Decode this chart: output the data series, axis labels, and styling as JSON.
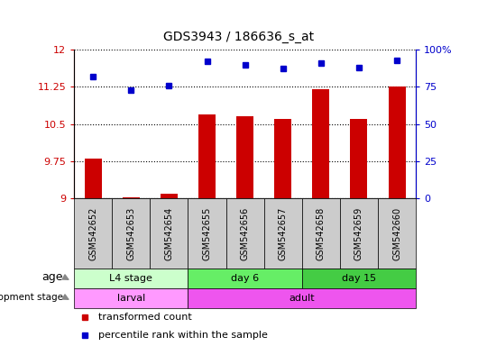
{
  "title": "GDS3943 / 186636_s_at",
  "samples": [
    "GSM542652",
    "GSM542653",
    "GSM542654",
    "GSM542655",
    "GSM542656",
    "GSM542657",
    "GSM542658",
    "GSM542659",
    "GSM542660"
  ],
  "transformed_count": [
    9.8,
    9.02,
    9.1,
    10.7,
    10.65,
    10.6,
    11.2,
    10.6,
    11.25
  ],
  "percentile_rank": [
    82,
    73,
    76,
    92,
    90,
    87,
    91,
    88,
    93
  ],
  "ylim_left": [
    9.0,
    12.0
  ],
  "ylim_right": [
    0,
    100
  ],
  "yticks_left": [
    9.0,
    9.75,
    10.5,
    11.25,
    12.0
  ],
  "yticks_right": [
    0,
    25,
    50,
    75,
    100
  ],
  "ytick_labels_left": [
    "9",
    "9.75",
    "10.5",
    "11.25",
    "12"
  ],
  "ytick_labels_right": [
    "0",
    "25",
    "50",
    "75",
    "100%"
  ],
  "bar_color": "#cc0000",
  "dot_color": "#0000cc",
  "age_groups": [
    {
      "label": "L4 stage",
      "start": 0,
      "end": 3,
      "color": "#ccffcc"
    },
    {
      "label": "day 6",
      "start": 3,
      "end": 6,
      "color": "#66ee66"
    },
    {
      "label": "day 15",
      "start": 6,
      "end": 9,
      "color": "#44cc44"
    }
  ],
  "dev_groups": [
    {
      "label": "larval",
      "start": 0,
      "end": 3,
      "color": "#ff99ff"
    },
    {
      "label": "adult",
      "start": 3,
      "end": 9,
      "color": "#ee55ee"
    }
  ],
  "legend_items": [
    {
      "label": "transformed count",
      "color": "#cc0000"
    },
    {
      "label": "percentile rank within the sample",
      "color": "#0000cc"
    }
  ],
  "left_axis_color": "#cc0000",
  "right_axis_color": "#0000cc",
  "sample_bg": "#cccccc"
}
